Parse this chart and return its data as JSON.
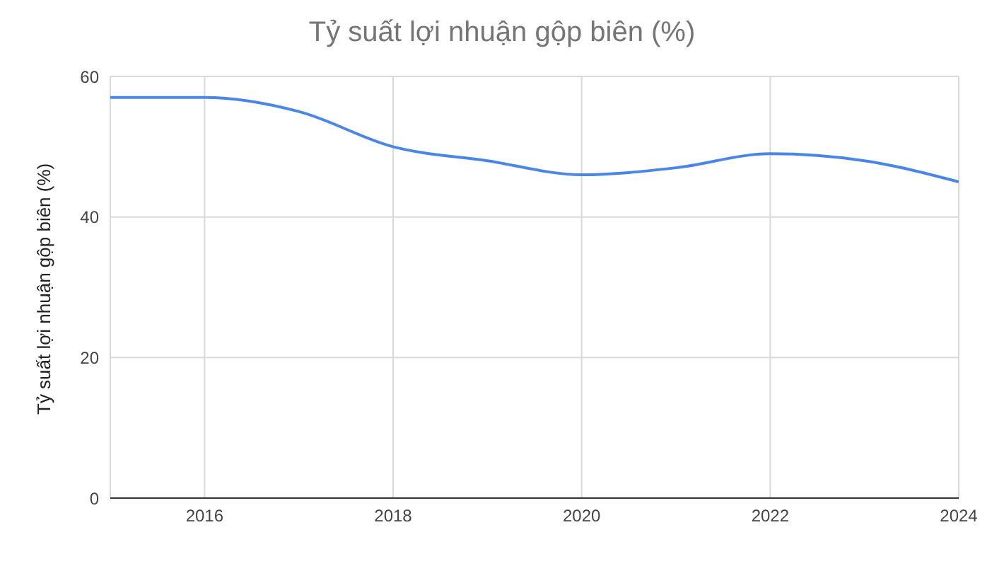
{
  "chart_data": {
    "type": "line",
    "title": "Tỷ suất lợi nhuận gộp biên (%)",
    "ylabel": "Tỷ suất lợi nhuận gộp biên (%)",
    "x": [
      2015,
      2016,
      2017,
      2018,
      2019,
      2020,
      2021,
      2022,
      2023,
      2024
    ],
    "series": [
      {
        "color": "#4a86e8",
        "values": [
          57,
          57,
          55,
          50,
          48,
          46,
          47,
          49,
          48,
          45
        ]
      }
    ],
    "xlim": [
      2015,
      2024
    ],
    "xticks": [
      2016,
      2018,
      2020,
      2022,
      2024
    ],
    "ylim": [
      0,
      60
    ],
    "yticks": [
      0,
      20,
      40,
      60
    ],
    "grid": true,
    "legend": false,
    "marker": "none",
    "line_style": "solid"
  }
}
